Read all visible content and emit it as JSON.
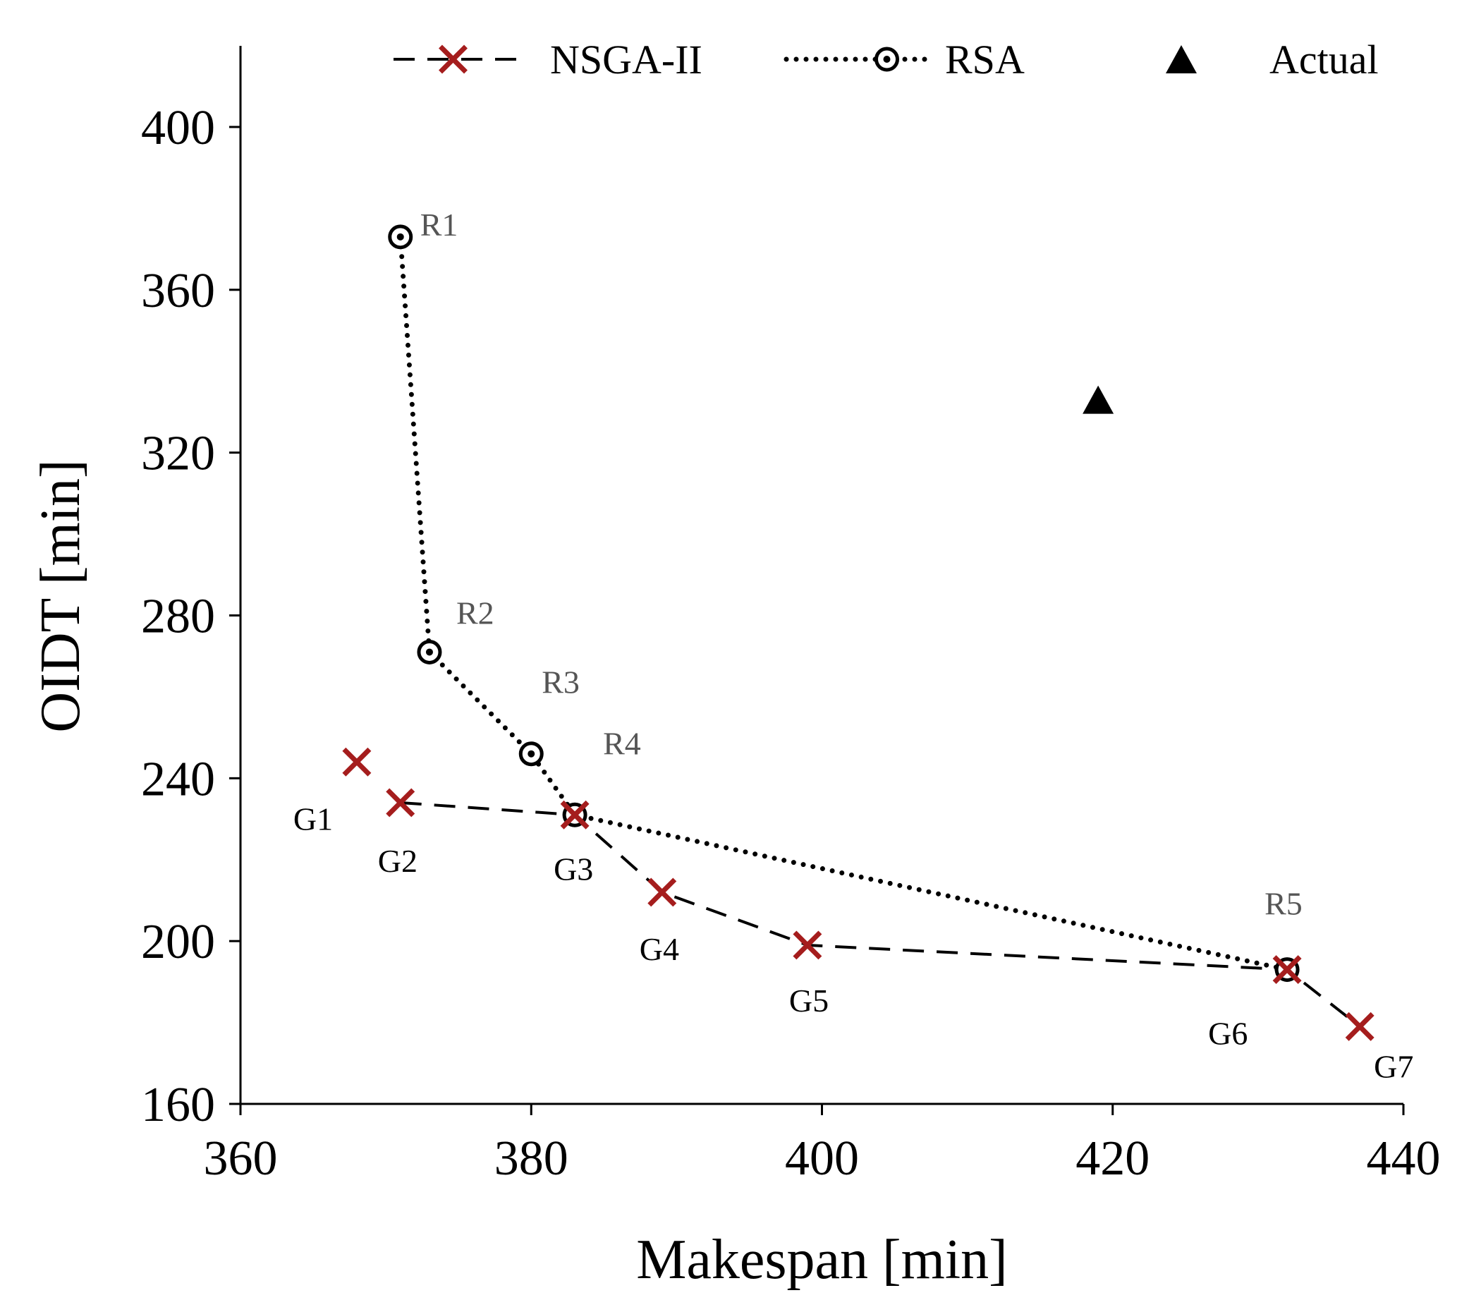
{
  "chart_data": {
    "type": "scatter",
    "xlabel": "Makespan [min]",
    "ylabel": "OIDT [min]",
    "xlim": [
      360,
      440
    ],
    "ylim": [
      160,
      420
    ],
    "xticks": [
      360,
      380,
      400,
      420,
      440
    ],
    "yticks": [
      160,
      200,
      240,
      280,
      320,
      360,
      400
    ],
    "grid": false,
    "legend_position": "top",
    "series": [
      {
        "name": "NSGA-II",
        "line_style": "dashed",
        "marker": "x",
        "marker_color": "#a51d1d",
        "line_color": "#000000",
        "points": [
          {
            "label": "G1",
            "x": 368,
            "y": 244,
            "connected": false
          },
          {
            "label": "G2",
            "x": 371,
            "y": 234,
            "connected": true
          },
          {
            "label": "G3",
            "x": 383,
            "y": 231,
            "connected": true
          },
          {
            "label": "G4",
            "x": 389,
            "y": 212,
            "connected": true
          },
          {
            "label": "G5",
            "x": 399,
            "y": 199,
            "connected": true
          },
          {
            "label": "G6",
            "x": 432,
            "y": 193,
            "connected": true
          },
          {
            "label": "G7",
            "x": 437,
            "y": 179,
            "connected": true
          }
        ]
      },
      {
        "name": "RSA",
        "line_style": "dotted",
        "marker": "bullseye",
        "marker_color": "#000000",
        "line_color": "#000000",
        "points": [
          {
            "label": "R1",
            "x": 371,
            "y": 373,
            "connected": true
          },
          {
            "label": "R2",
            "x": 373,
            "y": 271,
            "connected": true
          },
          {
            "label": "R3",
            "x": 380,
            "y": 246,
            "connected": true
          },
          {
            "label": "R4",
            "x": 383,
            "y": 231,
            "connected": true
          },
          {
            "label": "R5",
            "x": 432,
            "y": 193,
            "connected": true
          }
        ]
      },
      {
        "name": "Actual",
        "line_style": "none",
        "marker": "triangle",
        "marker_color": "#000000",
        "points": [
          {
            "label": "",
            "x": 419,
            "y": 333,
            "connected": false
          }
        ]
      }
    ]
  }
}
